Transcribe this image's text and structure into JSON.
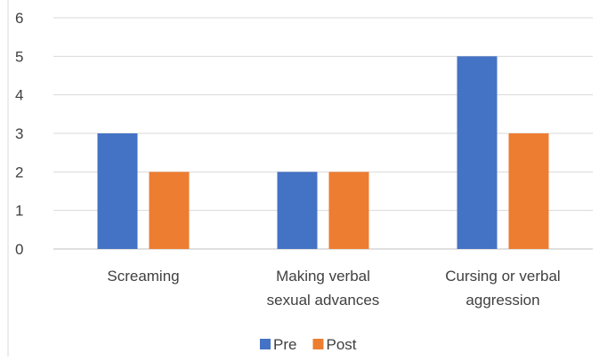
{
  "chart_data": {
    "type": "bar",
    "title": "",
    "xlabel": "",
    "ylabel": "",
    "categories": [
      [
        "Screaming"
      ],
      [
        "Making verbal",
        "sexual advances"
      ],
      [
        "Cursing or verbal",
        "aggression"
      ]
    ],
    "series": [
      {
        "name": "Pre",
        "values": [
          3,
          2,
          5
        ],
        "color": "#4472C4"
      },
      {
        "name": "Post",
        "values": [
          2,
          2,
          3
        ],
        "color": "#ED7D31"
      }
    ],
    "ylim": [
      0,
      6
    ],
    "yticks": [
      0,
      1,
      2,
      3,
      4,
      5,
      6
    ],
    "grid": true,
    "legend_position": "bottom",
    "gridline_color": "#D9D9D9",
    "axis_color": "#BFBFBF"
  }
}
